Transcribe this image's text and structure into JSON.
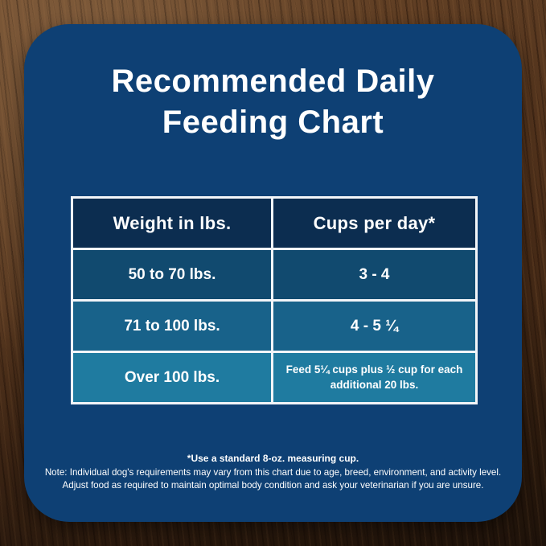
{
  "card": {
    "title_line1": "Recommended Daily",
    "title_line2": "Feeding Chart"
  },
  "chart_data": {
    "type": "table",
    "title": "Recommended Daily Feeding Chart",
    "columns": [
      "Weight in lbs.",
      "Cups per day*"
    ],
    "rows": [
      [
        "50 to 70 lbs.",
        "3 - 4"
      ],
      [
        "71 to 100 lbs.",
        "4 - 5 ¼"
      ],
      [
        "Over 100 lbs.",
        "Feed 5¼ cups plus ½ cup for each additional 20 lbs."
      ]
    ]
  },
  "footnotes": {
    "line1": "*Use a standard 8-oz. measuring cup.",
    "line2": "Note: Individual dog's requirements may vary from this chart due to age, breed, environment, and activity level.",
    "line3": "Adjust food as required to maintain optimal body condition and ask your veterinarian if you are unsure."
  },
  "colors": {
    "card_background": "#0e4074",
    "table_header_background": "#0c2d50",
    "row1_background": "#114a6f",
    "row2_background": "#18628a",
    "row3_background": "#1f7ba0",
    "table_border": "#f2f5f8",
    "text": "#ffffff",
    "wood_light": "#6e4a2c",
    "wood_dark": "#2e1c0f"
  }
}
